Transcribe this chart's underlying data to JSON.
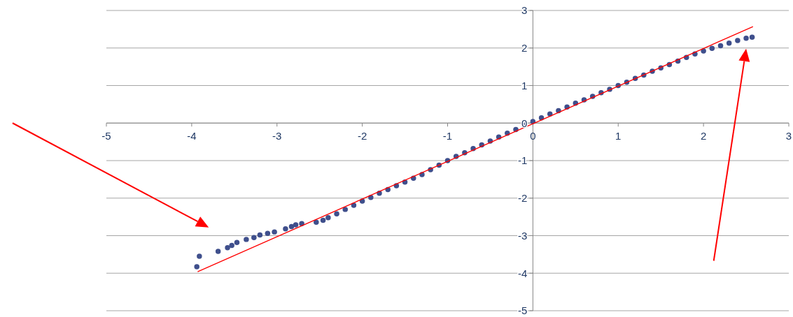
{
  "chart_data": {
    "type": "scatter",
    "xlim": [
      -5,
      3
    ],
    "ylim": [
      -5,
      3
    ],
    "xticks": [
      -5,
      -4,
      -3,
      -2,
      -1,
      0,
      1,
      2,
      3
    ],
    "yticks": [
      -5,
      -4,
      -3,
      -2,
      -1,
      0,
      1,
      2,
      3
    ],
    "grid": "y",
    "marker": "circle",
    "series": [
      {
        "color": "#3f4f8c",
        "x": [
          -3.94,
          -3.91,
          -3.69,
          -3.58,
          -3.53,
          -3.47,
          -3.36,
          -3.27,
          -3.2,
          -3.11,
          -3.03,
          -2.9,
          -2.83,
          -2.78,
          -2.71,
          -2.54,
          -2.46,
          -2.4,
          -2.3,
          -2.2,
          -2.1,
          -2.0,
          -1.9,
          -1.8,
          -1.7,
          -1.6,
          -1.5,
          -1.4,
          -1.3,
          -1.2,
          -1.1,
          -1.0,
          -0.9,
          -0.8,
          -0.7,
          -0.6,
          -0.5,
          -0.4,
          -0.3,
          -0.2,
          -0.1,
          0,
          0.1,
          0.2,
          0.3,
          0.4,
          0.5,
          0.6,
          0.7,
          0.8,
          0.9,
          1.0,
          1.1,
          1.2,
          1.3,
          1.4,
          1.5,
          1.6,
          1.7,
          1.8,
          1.9,
          2.0,
          2.1,
          2.2,
          2.3,
          2.4,
          2.5,
          2.57
        ],
        "values": [
          -3.83,
          -3.55,
          -3.42,
          -3.32,
          -3.26,
          -3.18,
          -3.1,
          -3.05,
          -2.98,
          -2.94,
          -2.9,
          -2.82,
          -2.76,
          -2.71,
          -2.68,
          -2.64,
          -2.59,
          -2.52,
          -2.42,
          -2.3,
          -2.19,
          -2.08,
          -1.98,
          -1.87,
          -1.77,
          -1.67,
          -1.57,
          -1.47,
          -1.37,
          -1.24,
          -1.12,
          -1.0,
          -0.89,
          -0.79,
          -0.68,
          -0.58,
          -0.48,
          -0.37,
          -0.27,
          -0.17,
          -0.06,
          0.04,
          0.14,
          0.24,
          0.33,
          0.43,
          0.53,
          0.62,
          0.71,
          0.81,
          0.9,
          1.0,
          1.09,
          1.19,
          1.28,
          1.38,
          1.47,
          1.56,
          1.65,
          1.75,
          1.84,
          1.92,
          1.99,
          2.06,
          2.13,
          2.2,
          2.26,
          2.29
        ]
      },
      {
        "type": "line",
        "marker": "none",
        "color": "#ff0000",
        "x": [
          -3.93,
          2.58
        ],
        "values": [
          -3.96,
          2.57
        ]
      }
    ]
  }
}
